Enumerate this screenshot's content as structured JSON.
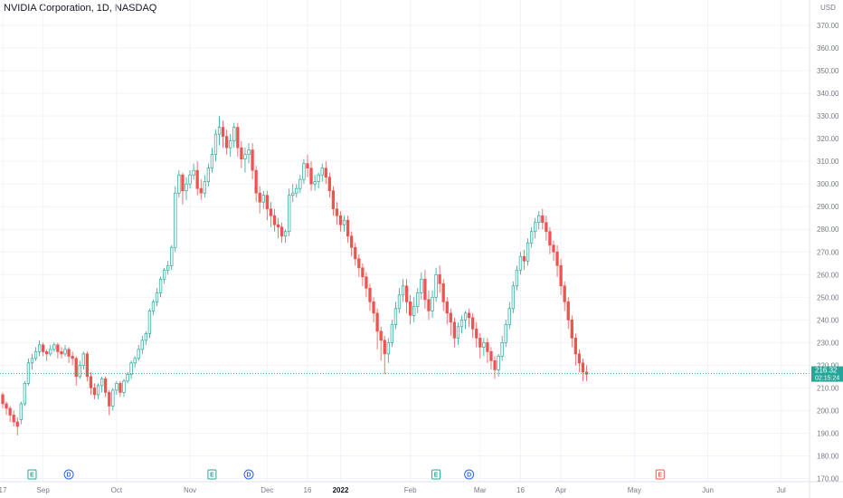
{
  "title": "NVIDIA Corporation, 1D, NASDAQ",
  "currency": "USD",
  "price_label": {
    "price": "216.32",
    "countdown": "02:15:24"
  },
  "colors": {
    "up": "#26a69a",
    "down": "#ef5350",
    "grid": "#f0f3fa",
    "axis_text": "#787b86",
    "last_price": "#26a69a",
    "earnings": "#26a69a",
    "dividend": "#2962ff",
    "future_earnings": "#ef5350"
  },
  "chart_data": {
    "type": "candlestick",
    "symbol": "NVIDIA Corporation",
    "interval": "1D",
    "exchange": "NASDAQ",
    "ylim": [
      167,
      378
    ],
    "y_ticks": [
      170,
      180,
      190,
      200,
      210,
      220,
      230,
      240,
      250,
      260,
      270,
      280,
      290,
      300,
      310,
      320,
      330,
      340,
      350,
      360,
      370
    ],
    "y_tick_labels": [
      "170.00",
      "180.00",
      "190.00",
      "200.00",
      "210.00",
      "220.00",
      "230.00",
      "240.00",
      "250.00",
      "260.00",
      "270.00",
      "280.00",
      "290.00",
      "300.00",
      "310.00",
      "320.00",
      "330.00",
      "340.00",
      "350.00",
      "360.00",
      "370.00"
    ],
    "x_ticks": [
      {
        "label": "17",
        "index": 0,
        "bold": false
      },
      {
        "label": "Sep",
        "index": 11,
        "bold": false
      },
      {
        "label": "Oct",
        "index": 31,
        "bold": false
      },
      {
        "label": "Nov",
        "index": 51,
        "bold": false
      },
      {
        "label": "Dec",
        "index": 72,
        "bold": false
      },
      {
        "label": "16",
        "index": 83,
        "bold": false
      },
      {
        "label": "2022",
        "index": 92,
        "bold": true
      },
      {
        "label": "Feb",
        "index": 111,
        "bold": false
      },
      {
        "label": "Mar",
        "index": 130,
        "bold": false
      },
      {
        "label": "16",
        "index": 141,
        "bold": false
      },
      {
        "label": "Apr",
        "index": 152,
        "bold": false
      },
      {
        "label": "May",
        "index": 172,
        "bold": false
      },
      {
        "label": "Jun",
        "index": 192,
        "bold": false
      },
      {
        "label": "Jul",
        "index": 212,
        "bold": false
      }
    ],
    "last_price": 216.32,
    "candles": [
      [
        207,
        203,
        208,
        201
      ],
      [
        203,
        201,
        204,
        198
      ],
      [
        201,
        198,
        202,
        195
      ],
      [
        198,
        195,
        200,
        193
      ],
      [
        195,
        193,
        197,
        189
      ],
      [
        196,
        203,
        204,
        194
      ],
      [
        203,
        212,
        213,
        202
      ],
      [
        212,
        221,
        223,
        211
      ],
      [
        221,
        223,
        225,
        218
      ],
      [
        223,
        226,
        228,
        222
      ],
      [
        226,
        229,
        231,
        224
      ],
      [
        229,
        226,
        230,
        224
      ],
      [
        226,
        225,
        227,
        222
      ],
      [
        225,
        227,
        229,
        224
      ],
      [
        227,
        229,
        230,
        226
      ],
      [
        229,
        226,
        230,
        223
      ],
      [
        226,
        225,
        228,
        223
      ],
      [
        225,
        227,
        229,
        224
      ],
      [
        227,
        224,
        228,
        221
      ],
      [
        224,
        223,
        226,
        220
      ],
      [
        223,
        215,
        224,
        211
      ],
      [
        215,
        220,
        222,
        214
      ],
      [
        220,
        225,
        226,
        218
      ],
      [
        225,
        215,
        226,
        213
      ],
      [
        215,
        210,
        217,
        207
      ],
      [
        210,
        207,
        212,
        205
      ],
      [
        207,
        211,
        212,
        205
      ],
      [
        211,
        214,
        215,
        208
      ],
      [
        214,
        208,
        215,
        206
      ],
      [
        208,
        202,
        209,
        198
      ],
      [
        202,
        209,
        210,
        200
      ],
      [
        209,
        212,
        213,
        207
      ],
      [
        212,
        208,
        213,
        206
      ],
      [
        208,
        213,
        214,
        206
      ],
      [
        213,
        216,
        217,
        212
      ],
      [
        216,
        221,
        222,
        214
      ],
      [
        221,
        223,
        224,
        219
      ],
      [
        223,
        227,
        229,
        222
      ],
      [
        227,
        231,
        233,
        225
      ],
      [
        231,
        234,
        235,
        229
      ],
      [
        234,
        244,
        245,
        232
      ],
      [
        244,
        248,
        249,
        242
      ],
      [
        248,
        252,
        254,
        246
      ],
      [
        252,
        258,
        259,
        250
      ],
      [
        258,
        262,
        263,
        256
      ],
      [
        262,
        264,
        266,
        260
      ],
      [
        264,
        272,
        273,
        262
      ],
      [
        272,
        296,
        299,
        270
      ],
      [
        296,
        304,
        306,
        294
      ],
      [
        304,
        297,
        305,
        291
      ],
      [
        297,
        300,
        303,
        293
      ],
      [
        300,
        304,
        306,
        298
      ],
      [
        304,
        306,
        309,
        302
      ],
      [
        306,
        298,
        310,
        295
      ],
      [
        298,
        296,
        302,
        293
      ],
      [
        296,
        301,
        304,
        294
      ],
      [
        301,
        307,
        309,
        299
      ],
      [
        307,
        313,
        316,
        305
      ],
      [
        313,
        322,
        324,
        310
      ],
      [
        322,
        325,
        330,
        317
      ],
      [
        325,
        321,
        328,
        316
      ],
      [
        321,
        316,
        324,
        313
      ],
      [
        316,
        319,
        322,
        312
      ],
      [
        319,
        325,
        327,
        316
      ],
      [
        325,
        316,
        327,
        312
      ],
      [
        316,
        311,
        319,
        307
      ],
      [
        311,
        313,
        316,
        305
      ],
      [
        313,
        315,
        318,
        309
      ],
      [
        315,
        306,
        318,
        302
      ],
      [
        306,
        296,
        308,
        292
      ],
      [
        296,
        292,
        299,
        287
      ],
      [
        292,
        295,
        297,
        289
      ],
      [
        295,
        289,
        297,
        284
      ],
      [
        289,
        286,
        292,
        281
      ],
      [
        286,
        282,
        289,
        279
      ],
      [
        282,
        281,
        285,
        276
      ],
      [
        281,
        277,
        283,
        274
      ],
      [
        277,
        279,
        280,
        274
      ],
      [
        279,
        295,
        298,
        277
      ],
      [
        295,
        296,
        300,
        292
      ],
      [
        296,
        298,
        300,
        294
      ],
      [
        298,
        302,
        304,
        296
      ],
      [
        302,
        309,
        311,
        300
      ],
      [
        309,
        307,
        313,
        303
      ],
      [
        307,
        300,
        310,
        297
      ],
      [
        300,
        301,
        304,
        297
      ],
      [
        301,
        304,
        305,
        298
      ],
      [
        304,
        307,
        309,
        301
      ],
      [
        307,
        303,
        310,
        300
      ],
      [
        303,
        297,
        305,
        294
      ],
      [
        297,
        289,
        299,
        286
      ],
      [
        289,
        286,
        292,
        282
      ],
      [
        286,
        282,
        288,
        279
      ],
      [
        282,
        284,
        286,
        279
      ],
      [
        284,
        277,
        286,
        274
      ],
      [
        277,
        272,
        279,
        268
      ],
      [
        272,
        267,
        274,
        264
      ],
      [
        267,
        263,
        269,
        259
      ],
      [
        263,
        259,
        265,
        255
      ],
      [
        259,
        254,
        261,
        250
      ],
      [
        254,
        248,
        256,
        244
      ],
      [
        248,
        243,
        250,
        239
      ],
      [
        243,
        235,
        245,
        227
      ],
      [
        235,
        231,
        237,
        222
      ],
      [
        231,
        225,
        233,
        216
      ],
      [
        225,
        230,
        232,
        221
      ],
      [
        230,
        238,
        240,
        228
      ],
      [
        238,
        245,
        248,
        236
      ],
      [
        245,
        251,
        254,
        243
      ],
      [
        251,
        255,
        258,
        248
      ],
      [
        255,
        248,
        258,
        243
      ],
      [
        248,
        242,
        251,
        238
      ],
      [
        242,
        246,
        250,
        239
      ],
      [
        246,
        252,
        254,
        243
      ],
      [
        252,
        258,
        261,
        249
      ],
      [
        258,
        249,
        262,
        245
      ],
      [
        249,
        244,
        253,
        240
      ],
      [
        244,
        250,
        253,
        241
      ],
      [
        250,
        260,
        263,
        248
      ],
      [
        260,
        256,
        264,
        252
      ],
      [
        256,
        248,
        258,
        244
      ],
      [
        248,
        243,
        250,
        238
      ],
      [
        243,
        239,
        245,
        233
      ],
      [
        239,
        232,
        241,
        228
      ],
      [
        232,
        237,
        239,
        229
      ],
      [
        237,
        240,
        242,
        234
      ],
      [
        240,
        243,
        244,
        236
      ],
      [
        243,
        241,
        245,
        237
      ],
      [
        241,
        236,
        243,
        232
      ],
      [
        236,
        232,
        239,
        228
      ],
      [
        232,
        228,
        234,
        223
      ],
      [
        228,
        230,
        232,
        224
      ],
      [
        230,
        226,
        232,
        221
      ],
      [
        226,
        222,
        228,
        218
      ],
      [
        222,
        218,
        224,
        214
      ],
      [
        218,
        224,
        225,
        215
      ],
      [
        224,
        230,
        233,
        222
      ],
      [
        230,
        238,
        240,
        228
      ],
      [
        238,
        245,
        248,
        236
      ],
      [
        245,
        255,
        257,
        243
      ],
      [
        255,
        262,
        264,
        253
      ],
      [
        262,
        268,
        270,
        260
      ],
      [
        268,
        266,
        271,
        262
      ],
      [
        266,
        274,
        276,
        264
      ],
      [
        274,
        279,
        281,
        272
      ],
      [
        279,
        283,
        285,
        276
      ],
      [
        283,
        286,
        288,
        280
      ],
      [
        286,
        283,
        289,
        280
      ],
      [
        283,
        279,
        286,
        275
      ],
      [
        279,
        273,
        281,
        269
      ],
      [
        273,
        270,
        275,
        266
      ],
      [
        270,
        264,
        273,
        259
      ],
      [
        264,
        255,
        267,
        251
      ],
      [
        255,
        248,
        257,
        244
      ],
      [
        248,
        240,
        250,
        236
      ],
      [
        240,
        232,
        242,
        228
      ],
      [
        232,
        225,
        234,
        220
      ],
      [
        225,
        221,
        227,
        217
      ],
      [
        221,
        217,
        223,
        213
      ],
      [
        217,
        216,
        220,
        213
      ]
    ],
    "events": [
      {
        "type": "earnings",
        "label": "E",
        "index": 8
      },
      {
        "type": "dividend",
        "label": "D",
        "index": 18
      },
      {
        "type": "earnings",
        "label": "E",
        "index": 57
      },
      {
        "type": "dividend",
        "label": "D",
        "index": 67
      },
      {
        "type": "earnings",
        "label": "E",
        "index": 118
      },
      {
        "type": "dividend",
        "label": "D",
        "index": 127
      },
      {
        "type": "future_earnings",
        "label": "E",
        "index": 179
      }
    ]
  }
}
